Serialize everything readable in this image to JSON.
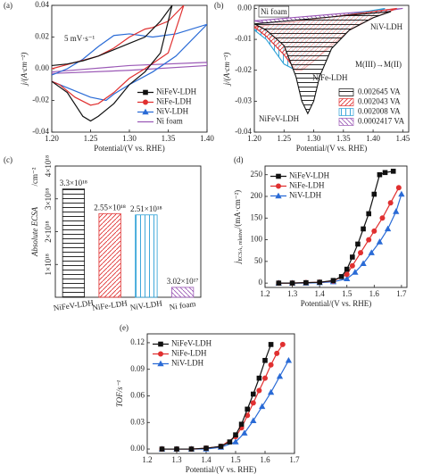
{
  "chart_data": [
    {
      "type": "line",
      "panel": "(a)",
      "xlabel": "Potential/(V vs. RHE)",
      "ylabel": [
        "j/(A·cm⁻²)"
      ],
      "xlim": [
        1.2,
        1.4
      ],
      "xticks": [
        {
          "value": 1.2,
          "label": "1.20"
        },
        1.25,
        {
          "value": 1.3,
          "label": "1.30"
        },
        1.35,
        {
          "value": 1.4,
          "label": "1.40"
        }
      ],
      "ylim": [
        -0.04,
        0.04
      ],
      "yticks": [
        -0.04,
        -0.02,
        {
          "value": 0,
          "label": "0.00"
        },
        0.02,
        0.04
      ],
      "annotations": [
        {
          "text": "5 mV·s⁻¹",
          "color": "#222"
        }
      ],
      "legend": "lower right",
      "show_points": false,
      "series": [
        {
          "name": "NiFeV-LDH",
          "color": "#111111",
          "marker": "square",
          "x": [
            1.2,
            1.22,
            1.24,
            1.26,
            1.28,
            1.3,
            1.32,
            1.34,
            1.355,
            1.34,
            1.32,
            1.3,
            1.28,
            1.26,
            1.25,
            1.24,
            1.22,
            1.2
          ],
          "values": [
            0.002,
            0.003,
            0.005,
            0.008,
            0.012,
            0.016,
            0.02,
            0.03,
            0.04,
            0.01,
            -0.002,
            -0.01,
            -0.022,
            -0.03,
            -0.033,
            -0.03,
            -0.015,
            -0.008
          ]
        },
        {
          "name": "NiFe-LDH",
          "color": "#e03030",
          "marker": "circle",
          "x": [
            1.2,
            1.23,
            1.26,
            1.28,
            1.3,
            1.32,
            1.33,
            1.35,
            1.37,
            1.35,
            1.32,
            1.3,
            1.28,
            1.26,
            1.25,
            1.23,
            1.21,
            1.2
          ],
          "values": [
            0.0,
            0.004,
            0.008,
            0.013,
            0.02,
            0.025,
            0.026,
            0.03,
            0.04,
            0.01,
            0.0,
            -0.006,
            -0.015,
            -0.022,
            -0.023,
            -0.018,
            -0.01,
            -0.008
          ]
        },
        {
          "name": "NiV-LDH",
          "color": "#2a6bd6",
          "marker": "triangle",
          "x": [
            1.2,
            1.22,
            1.24,
            1.26,
            1.28,
            1.3,
            1.33,
            1.36,
            1.4,
            1.36,
            1.33,
            1.3,
            1.28,
            1.27,
            1.25,
            1.22,
            1.2
          ],
          "values": [
            -0.004,
            0.0,
            0.006,
            0.014,
            0.021,
            0.022,
            0.02,
            0.022,
            0.028,
            0.008,
            -0.002,
            -0.01,
            -0.016,
            -0.02,
            -0.018,
            -0.012,
            -0.008
          ]
        },
        {
          "name": "Ni foam",
          "color": "#9b59b6",
          "marker": "none",
          "x": [
            1.2,
            1.3,
            1.4,
            1.4,
            1.3,
            1.2
          ],
          "values": [
            -0.002,
            0.002,
            0.004,
            0.002,
            -0.001,
            -0.003
          ]
        }
      ]
    },
    {
      "type": "area",
      "panel": "(b)",
      "xlabel": "Potential/(V vs. RHE)",
      "ylabel": [
        "j/(A·cm⁻²)"
      ],
      "xlim": [
        1.2,
        1.46
      ],
      "xticks": [
        {
          "value": 1.2,
          "label": "1.20"
        },
        1.25,
        {
          "value": 1.3,
          "label": "1.30"
        },
        1.35,
        {
          "value": 1.4,
          "label": "1.40"
        },
        1.45
      ],
      "ylim": [
        -0.04,
        0.001
      ],
      "yticks": [
        -0.04,
        -0.03,
        -0.02,
        -0.01,
        {
          "value": 0,
          "label": "0.00"
        }
      ],
      "annotations": [
        {
          "text": "M(III)→M(II)",
          "color": "#e0199b"
        }
      ],
      "legend": "lower right",
      "series": [
        {
          "name": "0.002645 VA",
          "label": "NiFeV-LDH",
          "color": "#111111",
          "hatch": "horizontal",
          "x": [
            1.43,
            1.4,
            1.36,
            1.33,
            1.31,
            1.3,
            1.29,
            1.28,
            1.27,
            1.25,
            1.22,
            1.2
          ],
          "values": [
            -0.001,
            -0.003,
            -0.007,
            -0.013,
            -0.022,
            -0.03,
            -0.034,
            -0.03,
            -0.022,
            -0.012,
            -0.007,
            -0.005
          ]
        },
        {
          "name": "0.002043 VA",
          "label": "NiFe-LDH",
          "color": "#e03030",
          "hatch": "diagonal",
          "x": [
            1.44,
            1.4,
            1.36,
            1.33,
            1.3,
            1.28,
            1.27,
            1.25,
            1.22,
            1.2
          ],
          "values": [
            0.0,
            -0.003,
            -0.007,
            -0.012,
            -0.017,
            -0.02,
            -0.02,
            -0.015,
            -0.009,
            -0.006
          ]
        },
        {
          "name": "0.002008 VA",
          "label": "NiV-LDH",
          "color": "#2a9fd6",
          "hatch": "vertical",
          "x": [
            1.42,
            1.38,
            1.34,
            1.3,
            1.28,
            1.27,
            1.25,
            1.22,
            1.2
          ],
          "values": [
            0.0,
            -0.003,
            -0.008,
            -0.013,
            -0.016,
            -0.02,
            -0.018,
            -0.01,
            -0.007
          ]
        },
        {
          "name": "0.0002417 VA",
          "label": "Ni foam",
          "color": "#9b59b6",
          "hatch": "backslash",
          "x": [
            1.45,
            1.35,
            1.25,
            1.2
          ],
          "values": [
            0.0,
            -0.003,
            -0.006,
            -0.004
          ]
        }
      ]
    },
    {
      "type": "bar",
      "panel": "(c)",
      "ylabel": [
        "Absolute ECSA"
      ],
      "yunit": "/cm⁻²",
      "categories": [
        "NiFeV-LDH",
        "NiFe-LDH",
        "NiV-LDH",
        "Ni foam"
      ],
      "values": [
        3.3e+18,
        2.55e+18,
        2.51e+18,
        3.02e+17
      ],
      "value_labels": [
        "3.3×10¹⁸",
        "2.55×10¹⁸",
        "2.51×10¹⁸",
        "3.02×10¹⁷"
      ],
      "colors": [
        "#111111",
        "#e03030",
        "#2a9fd6",
        "#9b59b6"
      ],
      "hatches": [
        "horizontal",
        "diagonal",
        "vertical",
        "backslash"
      ],
      "ylim": [
        0,
        4e+18
      ],
      "yticks": [
        {
          "value": 1e+18,
          "label": "1×10¹⁸"
        },
        {
          "value": 2e+18,
          "label": "2×10¹⁸"
        },
        {
          "value": 3e+18,
          "label": "3×10¹⁸"
        },
        {
          "value": 4e+18,
          "label": "4×10¹⁸"
        }
      ]
    },
    {
      "type": "line",
      "panel": "(d)",
      "xlabel": "Potential/(V vs. RHE)",
      "ylabel": [
        "j",
        "ECSA, relative",
        "/(mA·cm⁻²)"
      ],
      "xlim": [
        1.2,
        1.72
      ],
      "xticks": [
        1.2,
        1.3,
        1.4,
        1.5,
        1.6,
        1.7
      ],
      "ylim": [
        -10,
        270
      ],
      "yticks": [
        0,
        50,
        100,
        150,
        200,
        250
      ],
      "legend": "upper left",
      "show_points": true,
      "series": [
        {
          "name": "NiFeV-LDH",
          "color": "#111111",
          "marker": "square",
          "x": [
            1.25,
            1.3,
            1.35,
            1.4,
            1.45,
            1.48,
            1.5,
            1.52,
            1.54,
            1.56,
            1.58,
            1.6,
            1.62,
            1.64,
            1.67
          ],
          "values": [
            0,
            0,
            1,
            2,
            6,
            15,
            32,
            60,
            90,
            125,
            160,
            205,
            250,
            255,
            258
          ]
        },
        {
          "name": "NiFe-LDH",
          "color": "#e03030",
          "marker": "circle",
          "x": [
            1.25,
            1.3,
            1.35,
            1.4,
            1.45,
            1.5,
            1.52,
            1.55,
            1.58,
            1.6,
            1.63,
            1.66,
            1.69
          ],
          "values": [
            0,
            0,
            1,
            2,
            5,
            20,
            40,
            70,
            100,
            120,
            150,
            185,
            220
          ]
        },
        {
          "name": "NiV-LDH",
          "color": "#2a6bd6",
          "marker": "triangle",
          "x": [
            1.25,
            1.3,
            1.35,
            1.4,
            1.45,
            1.5,
            1.53,
            1.56,
            1.59,
            1.62,
            1.65,
            1.68,
            1.7
          ],
          "values": [
            0,
            0,
            0,
            1,
            3,
            10,
            25,
            45,
            70,
            95,
            125,
            165,
            205
          ]
        }
      ]
    },
    {
      "type": "line",
      "panel": "(e)",
      "xlabel": "Potential/(V vs. RHE)",
      "ylabel": [
        "TOF/s⁻¹"
      ],
      "xlim": [
        1.2,
        1.7
      ],
      "xticks": [
        1.2,
        1.3,
        1.4,
        1.5,
        1.6,
        1.7
      ],
      "ylim": [
        -0.005,
        0.13
      ],
      "yticks": [
        {
          "value": 0,
          "label": "0.00"
        },
        0.03,
        0.06,
        0.09,
        0.12
      ],
      "legend": "upper left",
      "show_points": true,
      "series": [
        {
          "name": "NiFeV-LDH",
          "color": "#111111",
          "marker": "square",
          "x": [
            1.25,
            1.3,
            1.35,
            1.4,
            1.45,
            1.48,
            1.5,
            1.52,
            1.54,
            1.56,
            1.58,
            1.6,
            1.62
          ],
          "values": [
            0,
            0,
            0,
            0.001,
            0.003,
            0.008,
            0.016,
            0.028,
            0.045,
            0.062,
            0.08,
            0.1,
            0.118
          ]
        },
        {
          "name": "NiFe-LDH",
          "color": "#e03030",
          "marker": "circle",
          "x": [
            1.25,
            1.3,
            1.35,
            1.4,
            1.45,
            1.5,
            1.52,
            1.54,
            1.56,
            1.58,
            1.6,
            1.62,
            1.64,
            1.66
          ],
          "values": [
            0,
            0,
            0,
            0.001,
            0.003,
            0.014,
            0.024,
            0.038,
            0.052,
            0.066,
            0.08,
            0.095,
            0.108,
            0.118
          ]
        },
        {
          "name": "NiV-LDH",
          "color": "#2a6bd6",
          "marker": "triangle",
          "x": [
            1.25,
            1.3,
            1.35,
            1.4,
            1.45,
            1.5,
            1.53,
            1.56,
            1.59,
            1.62,
            1.65,
            1.68
          ],
          "values": [
            0,
            0,
            0,
            0,
            0.002,
            0.008,
            0.018,
            0.032,
            0.048,
            0.064,
            0.082,
            0.1
          ]
        }
      ]
    }
  ]
}
